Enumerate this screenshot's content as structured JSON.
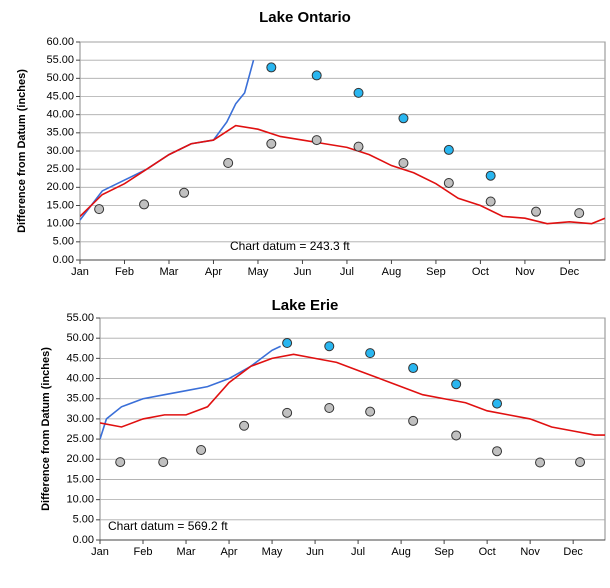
{
  "chart_data": [
    {
      "type": "line",
      "title": "Lake Ontario",
      "y_label": "Difference from Datum (inches)",
      "annotation": "Chart datum = 243.3 ft",
      "xlim": [
        0,
        11.8
      ],
      "xticks": [
        {
          "value": 0,
          "label": "Jan"
        },
        {
          "value": 1,
          "label": "Feb"
        },
        {
          "value": 2,
          "label": "Mar"
        },
        {
          "value": 3,
          "label": "Apr"
        },
        {
          "value": 4,
          "label": "May"
        },
        {
          "value": 5,
          "label": "Jun"
        },
        {
          "value": 6,
          "label": "Jul"
        },
        {
          "value": 7,
          "label": "Aug"
        },
        {
          "value": 8,
          "label": "Sep"
        },
        {
          "value": 9,
          "label": "Oct"
        },
        {
          "value": 10,
          "label": "Nov"
        },
        {
          "value": 11,
          "label": "Dec"
        }
      ],
      "ylim": [
        0,
        60
      ],
      "yticks": [
        {
          "value": 0,
          "label": "0.00"
        },
        {
          "value": 5,
          "label": "5.00"
        },
        {
          "value": 10,
          "label": "10.00"
        },
        {
          "value": 15,
          "label": "15.00"
        },
        {
          "value": 20,
          "label": "20.00"
        },
        {
          "value": 25,
          "label": "25.00"
        },
        {
          "value": 30,
          "label": "30.00"
        },
        {
          "value": 35,
          "label": "35.00"
        },
        {
          "value": 40,
          "label": "40.00"
        },
        {
          "value": 45,
          "label": "45.00"
        },
        {
          "value": 50,
          "label": "50.00"
        },
        {
          "value": 55,
          "label": "55.00"
        },
        {
          "value": 60,
          "label": "60.00"
        }
      ],
      "grid": true,
      "series": [
        {
          "type": "line",
          "color": "#3a6fd8",
          "x": [
            0,
            0.5,
            1,
            1.5,
            2,
            2.5,
            3,
            3.3,
            3.5,
            3.7,
            3.9
          ],
          "values": [
            11,
            19,
            22,
            25,
            29,
            32,
            33,
            38,
            43,
            46,
            55
          ]
        },
        {
          "type": "line",
          "color": "#e01010",
          "x": [
            0,
            0.5,
            1,
            1.5,
            2,
            2.5,
            3,
            3.5,
            4,
            4.5,
            5,
            5.5,
            6,
            6.5,
            7,
            7.5,
            8,
            8.5,
            9,
            9.5,
            10,
            10.5,
            11,
            11.5,
            11.8
          ],
          "values": [
            12,
            18,
            21,
            25,
            29,
            32,
            33,
            37,
            36,
            34,
            33,
            32,
            31,
            29,
            26,
            24,
            21,
            17,
            15,
            12,
            11.5,
            10,
            10.5,
            10,
            11.5
          ]
        },
        {
          "type": "scatter",
          "color": "#c0c0c0",
          "x": [
            0.43,
            1.44,
            2.34,
            3.33,
            4.3,
            5.32,
            6.26,
            7.27,
            8.29,
            9.23,
            10.25,
            11.22
          ],
          "values": [
            14,
            15.3,
            18.5,
            26.7,
            32,
            33,
            31.2,
            26.7,
            21.2,
            16.1,
            13.3,
            12.9
          ]
        },
        {
          "type": "scatter",
          "color": "#29b6f0",
          "x": [
            4.3,
            5.32,
            6.26,
            7.27,
            8.29,
            9.23
          ],
          "values": [
            53,
            50.8,
            46,
            39,
            30.3,
            23.2
          ]
        }
      ]
    },
    {
      "type": "line",
      "title": "Lake Erie",
      "y_label": "Difference from Datum (inches)",
      "annotation": "Chart datum = 569.2 ft",
      "xlim": [
        0,
        11.74
      ],
      "xticks": [
        {
          "value": 0,
          "label": "Jan"
        },
        {
          "value": 1,
          "label": "Feb"
        },
        {
          "value": 2,
          "label": "Mar"
        },
        {
          "value": 3,
          "label": "Apr"
        },
        {
          "value": 4,
          "label": "May"
        },
        {
          "value": 5,
          "label": "Jun"
        },
        {
          "value": 6,
          "label": "Jul"
        },
        {
          "value": 7,
          "label": "Aug"
        },
        {
          "value": 8,
          "label": "Sep"
        },
        {
          "value": 9,
          "label": "Oct"
        },
        {
          "value": 10,
          "label": "Nov"
        },
        {
          "value": 11,
          "label": "Dec"
        }
      ],
      "ylim": [
        0,
        55
      ],
      "yticks": [
        {
          "value": 0,
          "label": "0.00"
        },
        {
          "value": 5,
          "label": "5.00"
        },
        {
          "value": 10,
          "label": "10.00"
        },
        {
          "value": 15,
          "label": "15.00"
        },
        {
          "value": 20,
          "label": "20.00"
        },
        {
          "value": 25,
          "label": "25.00"
        },
        {
          "value": 30,
          "label": "30.00"
        },
        {
          "value": 35,
          "label": "35.00"
        },
        {
          "value": 40,
          "label": "40.00"
        },
        {
          "value": 45,
          "label": "45.00"
        },
        {
          "value": 50,
          "label": "50.00"
        },
        {
          "value": 55,
          "label": "55.00"
        }
      ],
      "grid": true,
      "series": [
        {
          "type": "line",
          "color": "#3a6fd8",
          "x": [
            0,
            0.15,
            0.5,
            1,
            1.5,
            2,
            2.5,
            3,
            3.5,
            4,
            4.2
          ],
          "values": [
            25,
            30,
            33,
            35,
            36,
            37,
            38,
            40,
            43,
            47,
            48
          ]
        },
        {
          "type": "line",
          "color": "#e01010",
          "x": [
            0,
            0.5,
            1,
            1.5,
            2,
            2.5,
            3,
            3.5,
            4,
            4.5,
            5,
            5.5,
            6,
            6.5,
            7,
            7.5,
            8,
            8.5,
            9,
            9.5,
            10,
            10.5,
            11,
            11.5,
            11.74
          ],
          "values": [
            29,
            28,
            30,
            31,
            31,
            33,
            39,
            43,
            45,
            46,
            45,
            44,
            42,
            40,
            38,
            36,
            35,
            34,
            32,
            31,
            30,
            28,
            27,
            26,
            26
          ]
        },
        {
          "type": "scatter",
          "color": "#c0c0c0",
          "x": [
            0.47,
            1.47,
            2.35,
            3.35,
            4.35,
            5.33,
            6.28,
            7.28,
            8.28,
            9.23,
            10.23,
            11.16
          ],
          "values": [
            19.3,
            19.3,
            22.3,
            28.3,
            31.5,
            32.7,
            31.8,
            29.5,
            25.9,
            22,
            19.2,
            19.3
          ]
        },
        {
          "type": "scatter",
          "color": "#29b6f0",
          "x": [
            4.35,
            5.33,
            6.28,
            7.28,
            8.28,
            9.23
          ],
          "values": [
            48.8,
            48,
            46.3,
            42.6,
            38.6,
            33.8
          ]
        }
      ]
    }
  ]
}
